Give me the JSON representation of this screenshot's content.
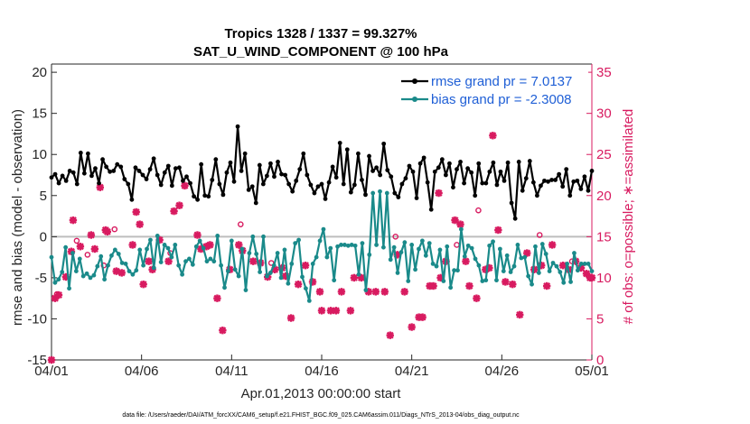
{
  "chart_data": {
    "type": "line",
    "title": "Tropics 1328 / 1337 = 99.327%",
    "subtitle": "SAT_U_WIND_COMPONENT @ 100 hPa",
    "xlabel": "Apr.01,2013 00:00:00 start",
    "ylabel": "rmse and bias (model - observation)",
    "y2label": "# of obs: o=possible; ∗=assimilated",
    "footnote": "data file: /Users/raeder/DAI/ATM_forcXX/CAM6_setup/f.e21.FHIST_BGC.f09_025.CAM6assim.011/Diags_NTrS_2013-04/obs_diag_output.nc",
    "xlim": [
      0,
      30
    ],
    "ylim": [
      -15,
      21
    ],
    "y2lim": [
      0,
      36
    ],
    "x_ticks": [
      0,
      5,
      10,
      15,
      20,
      25,
      30
    ],
    "x_tick_labels": [
      "04/01",
      "04/06",
      "04/11",
      "04/16",
      "04/21",
      "04/26",
      "05/01"
    ],
    "y_ticks": [
      -15,
      -10,
      -5,
      0,
      5,
      10,
      15,
      20
    ],
    "y_tick_labels": [
      "-15",
      "-10",
      "-5",
      "0",
      "5",
      "10",
      "15",
      "20"
    ],
    "y2_ticks": [
      0,
      5,
      10,
      15,
      20,
      25,
      30,
      35
    ],
    "y2_tick_labels": [
      "0",
      "5",
      "10",
      "15",
      "20",
      "25",
      "30",
      "35"
    ],
    "series": [
      {
        "name": "rmse grand pr = 7.0137",
        "color": "#000000",
        "values": [
          7.2,
          7.6,
          6.5,
          7.4,
          6.8,
          8.0,
          7.8,
          6.4,
          10.2,
          7.7,
          10.1,
          7.4,
          8.3,
          6.5,
          9.4,
          8.5,
          7.9,
          8.0,
          8.8,
          8.5,
          7.0,
          6.4,
          4.5,
          8.4,
          8.0,
          7.5,
          7.0,
          8.2,
          9.5,
          7.5,
          6.3,
          7.8,
          8.6,
          6.2,
          8.3,
          8.4,
          6.8,
          7.3,
          6.5,
          4.9,
          4.5,
          8.8,
          5.0,
          4.9,
          6.9,
          9.4,
          6.4,
          5.1,
          7.8,
          9.0,
          6.7,
          13.4,
          8.0,
          10.1,
          5.7,
          6.1,
          4.1,
          8.7,
          6.4,
          7.4,
          8.9,
          7.3,
          9.1,
          7.6,
          7.5,
          6.4,
          5.5,
          6.8,
          8.2,
          10.1,
          7.5,
          6.3,
          5.3,
          6.1,
          6.4,
          4.6,
          6.6,
          8.5,
          7.2,
          11.4,
          6.4,
          10.6,
          5.4,
          6.3,
          10.1,
          6.9,
          5.1,
          9.8,
          8.0,
          8.4,
          7.5,
          11.3,
          8.1,
          7.3,
          5.3,
          4.8,
          6.4,
          7.1,
          8.6,
          7.9,
          4.7,
          8.9,
          9.6,
          6.6,
          3.3,
          7.9,
          8.4,
          9.4,
          7.5,
          8.9,
          6.0,
          8.2,
          9.1,
          6.5,
          8.3,
          7.8,
          5.0,
          8.9,
          6.5,
          6.5,
          7.9,
          9.0,
          6.3,
          7.9,
          6.8,
          9.0,
          4.1,
          2.2,
          9.1,
          5.6,
          7.1,
          9.2,
          6.6,
          5.0,
          6.2,
          6.8,
          6.7,
          6.9,
          6.9,
          7.6,
          6.1,
          8.2,
          5.0,
          6.7,
          6.8,
          5.8,
          7.3,
          5.6,
          8.0
        ]
      },
      {
        "name": "bias grand pr = -2.3008",
        "color": "#1a8a8a",
        "values": [
          -2.5,
          -5.6,
          -5.2,
          -4.3,
          -1.3,
          -6.3,
          -2.0,
          -4.2,
          -2.7,
          -4.8,
          -4.5,
          -5.0,
          -4.7,
          -3.6,
          -2.4,
          -5.2,
          -3.5,
          -2.3,
          -1.6,
          -2.1,
          -3.2,
          -3.3,
          -4.2,
          -4.6,
          -4.1,
          -1.6,
          -3.5,
          -1.5,
          -0.4,
          -3.8,
          0.1,
          -3.1,
          -1.0,
          -1.4,
          -2.5,
          -1.0,
          -3.5,
          -4.6,
          -3.0,
          -2.7,
          -3.4,
          -1.2,
          -0.5,
          -1.4,
          -3.0,
          -2.7,
          -3.0,
          0.1,
          -3.5,
          -6.2,
          -4.2,
          -0.5,
          -4.0,
          -4.8,
          -1.5,
          -6.5,
          -2.0,
          0.0,
          -2.1,
          -4.3,
          0.0,
          -4.8,
          -4.4,
          -3.5,
          -2.0,
          -5.0,
          -1.6,
          -5.7,
          -3.3,
          -0.8,
          -0.4,
          -4.9,
          -6.3,
          -7.8,
          -3.3,
          -2.5,
          -0.5,
          0.9,
          -2.5,
          -1.4,
          -5.3,
          -1.2,
          -1.0,
          -1.0,
          -1.1,
          -1.0,
          -1.1,
          -4.6,
          -0.8,
          -6.5,
          -2.2,
          5.3,
          -1.0,
          5.5,
          -1.3,
          5.3,
          -2.8,
          -1.3,
          -4.4,
          -1.9,
          -0.7,
          -5.4,
          -1.0,
          -4.0,
          -1.5,
          -0.5,
          -2.3,
          -0.8,
          -3.3,
          -3.6,
          -1.6,
          -5.4,
          -1.2,
          -6.2,
          -4.1,
          -4.1,
          0.9,
          -2.4,
          -1.1,
          -1.4,
          -2.7,
          -3.5,
          -5.4,
          -5.3,
          -1.1,
          -0.6,
          -5.3,
          -1.5,
          -4.2,
          -2.3,
          -4.3,
          -3.6,
          -1.0,
          -2.6,
          -2.5,
          -4.8,
          -5.8,
          -1.2,
          -4.4,
          -0.9,
          -2.1,
          -4.2,
          -3.2,
          -3.6,
          -4.3,
          -5.6,
          -3.3,
          -5.5,
          -2.0,
          -4.1,
          -3.3,
          -3.3,
          -3.3,
          -4.2
        ]
      }
    ],
    "obs_assimilated": [
      [
        0.0,
        0
      ],
      [
        0.2,
        7.5
      ],
      [
        0.4,
        7.9
      ],
      [
        0.8,
        10.1
      ],
      [
        1.1,
        13.2
      ],
      [
        1.2,
        17.0
      ],
      [
        1.6,
        13.8
      ],
      [
        2.2,
        15.2
      ],
      [
        2.4,
        13.5
      ],
      [
        2.7,
        21.0
      ],
      [
        3.0,
        15.8
      ],
      [
        3.1,
        15.6
      ],
      [
        3.6,
        10.8
      ],
      [
        3.9,
        10.6
      ],
      [
        4.5,
        14.0
      ],
      [
        4.7,
        18.0
      ],
      [
        4.9,
        16.5
      ],
      [
        5.1,
        9.2
      ],
      [
        5.4,
        12.0
      ],
      [
        5.6,
        11.0
      ],
      [
        6.0,
        14.6
      ],
      [
        6.5,
        12.0
      ],
      [
        6.8,
        18.1
      ],
      [
        7.1,
        18.8
      ],
      [
        7.4,
        21.2
      ],
      [
        8.1,
        15.2
      ],
      [
        8.3,
        13.5
      ],
      [
        8.6,
        13.8
      ],
      [
        8.8,
        14.0
      ],
      [
        9.2,
        7.5
      ],
      [
        9.5,
        3.6
      ],
      [
        9.9,
        11.0
      ],
      [
        10.4,
        14.0
      ],
      [
        10.6,
        13.3
      ],
      [
        11.2,
        12.0
      ],
      [
        11.6,
        11.8
      ],
      [
        12.0,
        10.1
      ],
      [
        12.4,
        11.0
      ],
      [
        12.8,
        11.2
      ],
      [
        13.0,
        10.2
      ],
      [
        13.3,
        5.1
      ],
      [
        13.7,
        9.2
      ],
      [
        14.1,
        11.5
      ],
      [
        14.5,
        9.5
      ],
      [
        14.9,
        8.3
      ],
      [
        15.0,
        6.0
      ],
      [
        15.5,
        6.0
      ],
      [
        15.8,
        6.0
      ],
      [
        16.1,
        8.3
      ],
      [
        16.6,
        6.0
      ],
      [
        16.8,
        10.0
      ],
      [
        17.2,
        10.0
      ],
      [
        17.6,
        8.3
      ],
      [
        18.0,
        8.3
      ],
      [
        18.5,
        8.3
      ],
      [
        18.8,
        3.0
      ],
      [
        19.2,
        12.8
      ],
      [
        19.6,
        8.3
      ],
      [
        20.0,
        4.0
      ],
      [
        20.4,
        5.2
      ],
      [
        20.6,
        5.2
      ],
      [
        21.0,
        9.0
      ],
      [
        21.2,
        9.0
      ],
      [
        21.5,
        20.3
      ],
      [
        21.6,
        10.0
      ],
      [
        21.9,
        12.0
      ],
      [
        22.4,
        17.0
      ],
      [
        22.7,
        16.5
      ],
      [
        23.0,
        12.0
      ],
      [
        23.2,
        9.0
      ],
      [
        23.6,
        7.5
      ],
      [
        24.1,
        11.0
      ],
      [
        24.3,
        11.2
      ],
      [
        24.5,
        27.3
      ],
      [
        24.8,
        15.8
      ],
      [
        25.2,
        9.5
      ],
      [
        25.6,
        9.2
      ],
      [
        26.0,
        5.5
      ],
      [
        26.4,
        13.0
      ],
      [
        26.8,
        11.0
      ],
      [
        27.2,
        11.5
      ],
      [
        27.5,
        9.0
      ],
      [
        27.8,
        14.0
      ],
      [
        28.4,
        11.5
      ],
      [
        28.7,
        11.0
      ],
      [
        29.1,
        12.0
      ],
      [
        29.4,
        11.2
      ],
      [
        29.7,
        10.5
      ],
      [
        29.9,
        10.0
      ],
      [
        30.0,
        10.0
      ]
    ],
    "obs_possible": [
      [
        0.3,
        8.0
      ],
      [
        1.4,
        14.5
      ],
      [
        2.0,
        12.8
      ],
      [
        2.9,
        11.5
      ],
      [
        3.5,
        15.9
      ],
      [
        6.6,
        13.0
      ],
      [
        10.5,
        16.5
      ],
      [
        12.2,
        11.8
      ],
      [
        19.1,
        15.0
      ],
      [
        22.5,
        14.0
      ],
      [
        23.7,
        18.2
      ],
      [
        27.1,
        15.2
      ],
      [
        28.9,
        12.0
      ],
      [
        30.0,
        10.0
      ]
    ]
  }
}
